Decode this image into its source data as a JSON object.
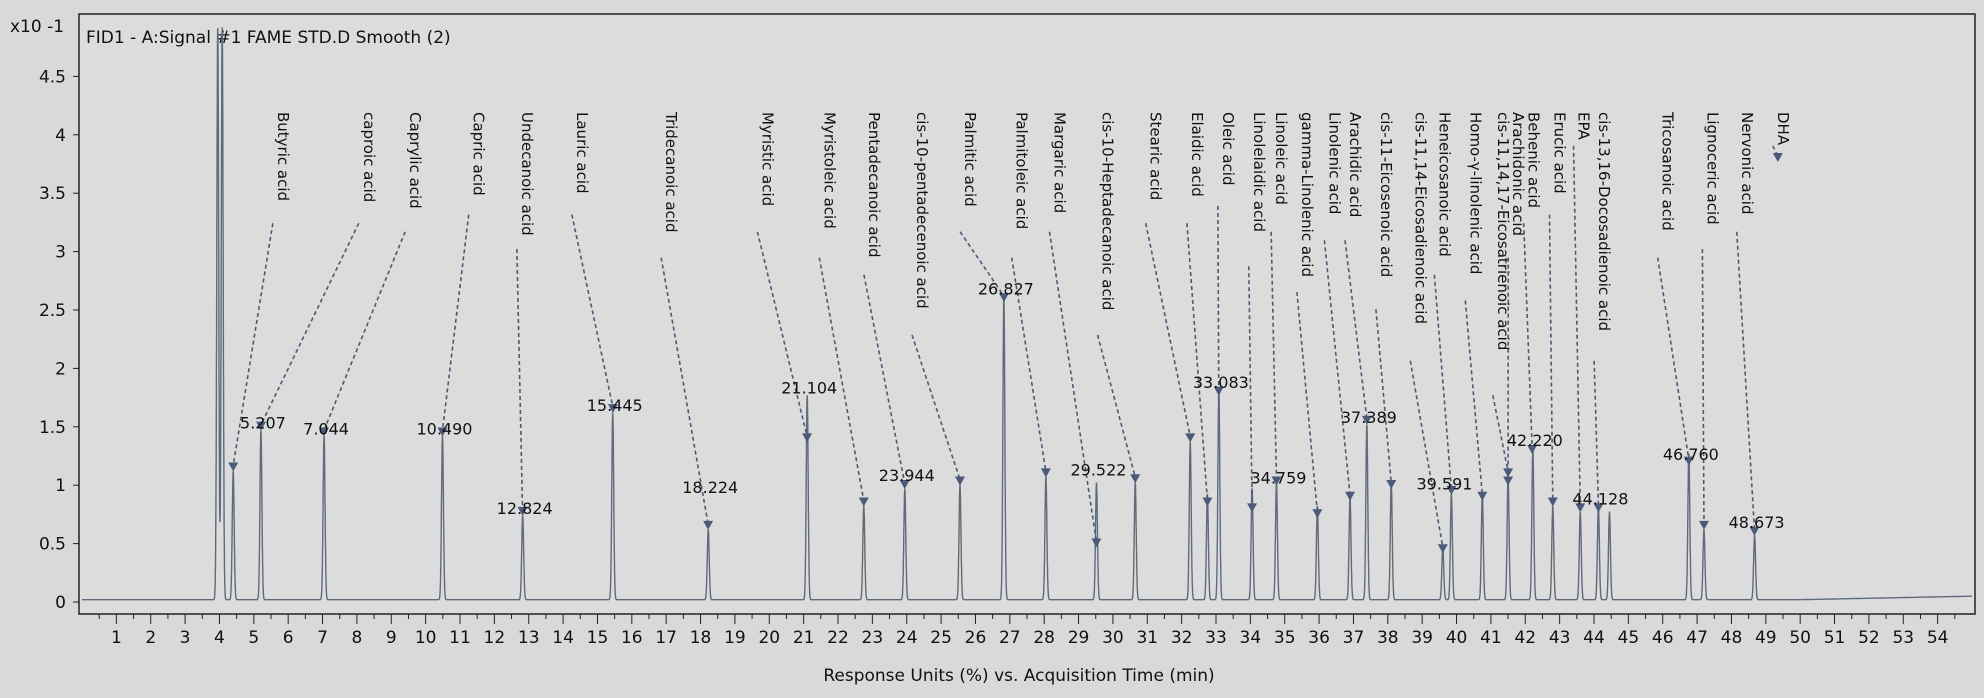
{
  "chart_data": {
    "type": "line",
    "title": "FID1 - A:Signal #1 FAME STD.D  Smooth (2)",
    "xlabel": "Response Units (%) vs. Acquisition Time (min)",
    "ylabel": "",
    "y_multiplier": "x10 -1",
    "xlim": [
      0,
      55
    ],
    "ylim": [
      0,
      5
    ],
    "x_ticks": [
      "1",
      "2",
      "3",
      "4",
      "5",
      "6",
      "7",
      "8",
      "9",
      "10",
      "11",
      "12",
      "13",
      "14",
      "15",
      "16",
      "17",
      "18",
      "19",
      "20",
      "21",
      "22",
      "23",
      "24",
      "25",
      "26",
      "27",
      "28",
      "29",
      "30",
      "31",
      "32",
      "33",
      "34",
      "35",
      "36",
      "37",
      "38",
      "39",
      "40",
      "41",
      "42",
      "43",
      "44",
      "45",
      "46",
      "47",
      "48",
      "49",
      "50",
      "51",
      "52",
      "53",
      "54"
    ],
    "y_ticks": [
      "0",
      "0.5",
      "1",
      "1.5",
      "2",
      "2.5",
      "3",
      "3.5",
      "4",
      "4.5"
    ],
    "grid": false,
    "series": [
      {
        "color": "#5f6b7a",
        "solvent_peaks": [
          {
            "rt": 3.95,
            "height": 4.9
          },
          {
            "rt": 4.08,
            "height": 4.9
          }
        ],
        "peaks": [
          {
            "rt": 4.4,
            "height": 1.1
          },
          {
            "rt": 5.207,
            "height": 1.45
          },
          {
            "rt": 7.044,
            "height": 1.4
          },
          {
            "rt": 10.49,
            "height": 1.4
          },
          {
            "rt": 12.824,
            "height": 0.72
          },
          {
            "rt": 15.445,
            "height": 1.6
          },
          {
            "rt": 18.224,
            "height": 0.6
          },
          {
            "rt": 21.104,
            "height": 1.75
          },
          {
            "rt": 22.75,
            "height": 0.8
          },
          {
            "rt": 23.944,
            "height": 0.95
          },
          {
            "rt": 25.55,
            "height": 0.98
          },
          {
            "rt": 26.827,
            "height": 2.6
          },
          {
            "rt": 28.05,
            "height": 1.05
          },
          {
            "rt": 29.522,
            "height": 1.0
          },
          {
            "rt": 30.65,
            "height": 1.0
          },
          {
            "rt": 32.25,
            "height": 1.35
          },
          {
            "rt": 32.75,
            "height": 0.9
          },
          {
            "rt": 33.083,
            "height": 1.8
          },
          {
            "rt": 34.05,
            "height": 0.95
          },
          {
            "rt": 34.759,
            "height": 1.0
          },
          {
            "rt": 35.95,
            "height": 0.8
          },
          {
            "rt": 36.9,
            "height": 0.88
          },
          {
            "rt": 37.389,
            "height": 1.5
          },
          {
            "rt": 38.1,
            "height": 1.0
          },
          {
            "rt": 39.6,
            "height": 0.45
          },
          {
            "rt": 39.85,
            "height": 0.9
          },
          {
            "rt": 40.75,
            "height": 0.9
          },
          {
            "rt": 41.5,
            "height": 1.05
          },
          {
            "rt": 42.22,
            "height": 1.3
          },
          {
            "rt": 42.8,
            "height": 0.8
          },
          {
            "rt": 43.6,
            "height": 0.75
          },
          {
            "rt": 44.128,
            "height": 0.8
          },
          {
            "rt": 44.45,
            "height": 0.75
          },
          {
            "rt": 46.76,
            "height": 1.25
          },
          {
            "rt": 47.2,
            "height": 0.6
          },
          {
            "rt": 48.673,
            "height": 0.55
          }
        ]
      }
    ],
    "peak_labels": [
      {
        "text": "5.207",
        "rt": 5.207,
        "height": 1.45
      },
      {
        "text": "7.044",
        "rt": 7.044,
        "height": 1.4
      },
      {
        "text": "10.490",
        "rt": 10.49,
        "height": 1.4
      },
      {
        "text": "12.824",
        "rt": 12.824,
        "height": 0.72
      },
      {
        "text": "15.445",
        "rt": 15.445,
        "height": 1.6
      },
      {
        "text": "18.224",
        "rt": 18.224,
        "height": 0.9
      },
      {
        "text": "21.104",
        "rt": 21.104,
        "height": 1.75
      },
      {
        "text": "23.944",
        "rt": 23.944,
        "height": 1.0
      },
      {
        "text": "26.827",
        "rt": 26.827,
        "height": 2.6
      },
      {
        "text": "29.522",
        "rt": 29.522,
        "height": 1.05
      },
      {
        "text": "33.083",
        "rt": 33.083,
        "height": 1.8
      },
      {
        "text": "34.759",
        "rt": 34.759,
        "height": 0.98
      },
      {
        "text": "37.389",
        "rt": 37.389,
        "height": 1.5
      },
      {
        "text": "39.591",
        "rt": 39.591,
        "height": 0.93
      },
      {
        "text": "42.220",
        "rt": 42.22,
        "height": 1.3
      },
      {
        "text": "44.128",
        "rt": 44.128,
        "height": 0.8
      },
      {
        "text": "46.760",
        "rt": 46.76,
        "height": 1.18
      },
      {
        "text": "48.673",
        "rt": 48.673,
        "height": 0.6
      }
    ],
    "compounds": [
      {
        "name": "Butyric acid",
        "label_rt": 5.7,
        "arrow_rt": 4.4,
        "arrow_y": 1.1
      },
      {
        "name": "caproic acid",
        "label_rt": 8.2,
        "arrow_rt": 5.21,
        "arrow_y": 1.45
      },
      {
        "name": "Caprylic acid",
        "label_rt": 9.55,
        "arrow_rt": 7.04,
        "arrow_y": 1.4
      },
      {
        "name": "Capric acid",
        "label_rt": 11.4,
        "arrow_rt": 10.49,
        "arrow_y": 1.4
      },
      {
        "name": "Undecanoic acid",
        "label_rt": 12.8,
        "arrow_rt": 12.82,
        "arrow_y": 0.72
      },
      {
        "name": "Lauric acid",
        "label_rt": 14.4,
        "arrow_rt": 15.45,
        "arrow_y": 1.6
      },
      {
        "name": "Tridecanoic acid",
        "label_rt": 17.0,
        "arrow_rt": 18.22,
        "arrow_y": 0.6
      },
      {
        "name": "Myristic acid",
        "label_rt": 19.8,
        "arrow_rt": 21.1,
        "arrow_y": 1.35
      },
      {
        "name": "Myristoleic acid",
        "label_rt": 21.6,
        "arrow_rt": 22.75,
        "arrow_y": 0.8
      },
      {
        "name": "Pentadecanoic acid",
        "label_rt": 22.9,
        "arrow_rt": 23.94,
        "arrow_y": 0.95
      },
      {
        "name": "cis-10-pentadecenoic acid",
        "label_rt": 24.3,
        "arrow_rt": 25.55,
        "arrow_y": 0.98
      },
      {
        "name": "Palmitic acid",
        "label_rt": 25.7,
        "arrow_rt": 26.83,
        "arrow_y": 2.55
      },
      {
        "name": "Palmitoleic acid",
        "label_rt": 27.2,
        "arrow_rt": 28.05,
        "arrow_y": 1.05
      },
      {
        "name": "Margaric acid",
        "label_rt": 28.3,
        "arrow_rt": 29.52,
        "arrow_y": 0.45
      },
      {
        "name": "cis-10-Heptadecanoic acid",
        "label_rt": 29.7,
        "arrow_rt": 30.65,
        "arrow_y": 1.0
      },
      {
        "name": "Stearic acid",
        "label_rt": 31.1,
        "arrow_rt": 32.25,
        "arrow_y": 1.35
      },
      {
        "name": "Elaidic acid",
        "label_rt": 32.3,
        "arrow_rt": 32.75,
        "arrow_y": 0.8
      },
      {
        "name": "Oleic acid",
        "label_rt": 33.2,
        "arrow_rt": 33.08,
        "arrow_y": 1.75
      },
      {
        "name": "Linolelaidic acid",
        "label_rt": 34.1,
        "arrow_rt": 34.05,
        "arrow_y": 0.75
      },
      {
        "name": "Linoleic acid",
        "label_rt": 34.75,
        "arrow_rt": 34.76,
        "arrow_y": 0.98
      },
      {
        "name": "gamma-Linolenic acid",
        "label_rt": 35.5,
        "arrow_rt": 35.95,
        "arrow_y": 0.7
      },
      {
        "name": "Linolenic acid",
        "label_rt": 36.3,
        "arrow_rt": 36.9,
        "arrow_y": 0.85
      },
      {
        "name": "Arachidic acid",
        "label_rt": 36.9,
        "arrow_rt": 37.39,
        "arrow_y": 1.5
      },
      {
        "name": "cis-11-Eicosenoic acid",
        "label_rt": 37.8,
        "arrow_rt": 38.1,
        "arrow_y": 0.95
      },
      {
        "name": "cis-11,14-Eicosadienoic acid",
        "label_rt": 38.8,
        "arrow_rt": 39.6,
        "arrow_y": 0.4
      },
      {
        "name": "Heneicosanoic acid",
        "label_rt": 39.5,
        "arrow_rt": 39.85,
        "arrow_y": 0.9
      },
      {
        "name": "Homo-γ-linolenic acid",
        "label_rt": 40.4,
        "arrow_rt": 40.75,
        "arrow_y": 0.85
      },
      {
        "name": "cis-11,14,17-Eicosatrienoic acid",
        "label_rt": 41.2,
        "arrow_rt": 41.5,
        "arrow_y": 1.05
      },
      {
        "name": "Arachidonic acid",
        "label_rt": 41.65,
        "arrow_rt": 41.5,
        "arrow_y": 0.98
      },
      {
        "name": "Behenic acid",
        "label_rt": 42.1,
        "arrow_rt": 42.2,
        "arrow_y": 1.25
      },
      {
        "name": "Erucic acid",
        "label_rt": 42.85,
        "arrow_rt": 42.8,
        "arrow_y": 0.8
      },
      {
        "name": "EPA",
        "label_rt": 43.55,
        "arrow_rt": 43.6,
        "arrow_y": 0.75
      },
      {
        "name": "cis-13,16-Docosadienoic acid",
        "label_rt": 44.15,
        "arrow_rt": 44.13,
        "arrow_y": 0.75
      },
      {
        "name": "Tricosanoic acid",
        "label_rt": 46.0,
        "arrow_rt": 46.76,
        "arrow_y": 1.15
      },
      {
        "name": "Lignoceric acid",
        "label_rt": 47.3,
        "arrow_rt": 47.2,
        "arrow_y": 0.6
      },
      {
        "name": "Nervonic acid",
        "label_rt": 48.3,
        "arrow_rt": 48.67,
        "arrow_y": 0.55
      },
      {
        "name": "DHA",
        "label_rt": 49.35,
        "arrow_rt": 49.35,
        "arrow_y": 3.75
      }
    ]
  }
}
